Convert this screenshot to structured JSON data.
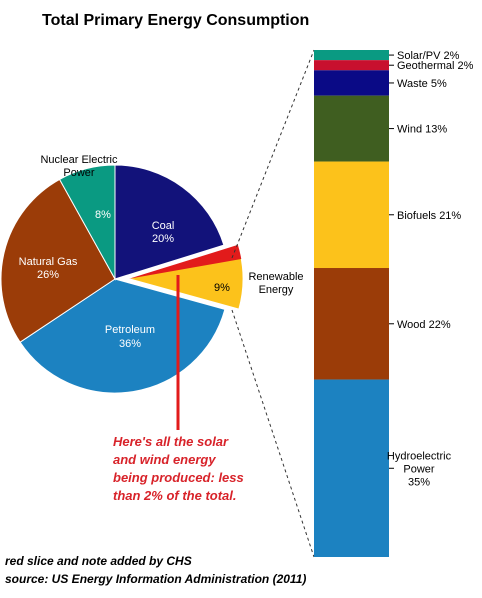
{
  "chart_data": [
    {
      "type": "pie",
      "title": "Total Primary Energy Consumption",
      "slices": [
        {
          "name": "Coal",
          "value": 20,
          "value_label": "20%",
          "color": "#12127a"
        },
        {
          "name": "Renewable Energy",
          "value": 9,
          "value_label": "9%",
          "color": "#fcc21b",
          "exploded": true
        },
        {
          "name": "Petroleum",
          "value": 36,
          "value_label": "36%",
          "color": "#1c82c1"
        },
        {
          "name": "Natural Gas",
          "value": 26,
          "value_label": "26%",
          "color": "#9b3c08"
        },
        {
          "name": "Nuclear Electric Power",
          "value": 8,
          "value_label": "8%",
          "color": "#0a9a82"
        }
      ],
      "highlight_slice": {
        "within": "Renewable Energy",
        "color": "#e21b1b",
        "value": 2
      }
    },
    {
      "type": "bar",
      "stacked": true,
      "description_label": "Renewable Energy breakdown",
      "segments": [
        {
          "name": "Solar/PV",
          "value": 2,
          "label": "Solar/PV 2%",
          "color": "#0a9a82"
        },
        {
          "name": "Geothermal",
          "value": 2,
          "label": "Geothermal 2%",
          "color": "#c8102e"
        },
        {
          "name": "Waste",
          "value": 5,
          "label": "Waste  5%",
          "color": "#0a0a86"
        },
        {
          "name": "Wind",
          "value": 13,
          "label": "Wind 13%",
          "color": "#3f5e20"
        },
        {
          "name": "Biofuels",
          "value": 21,
          "label": "Biofuels  21%",
          "color": "#fcc21b"
        },
        {
          "name": "Wood",
          "value": 22,
          "label": "Wood 22%",
          "color": "#9b3c08"
        },
        {
          "name": "Hydroelectric Power",
          "value": 35,
          "label_lines": [
            "Hydroelectric",
            "Power",
            "35%"
          ],
          "color": "#1c82c1"
        }
      ]
    }
  ],
  "annotation": {
    "lines": [
      "Here's all the solar",
      "and wind energy",
      "being produced: less",
      "than 2% of the total."
    ],
    "color": "#e21b1b"
  },
  "footer": {
    "line1": "red slice and note added by CHS",
    "line2": "source: US Energy Information Administration (2011)"
  }
}
